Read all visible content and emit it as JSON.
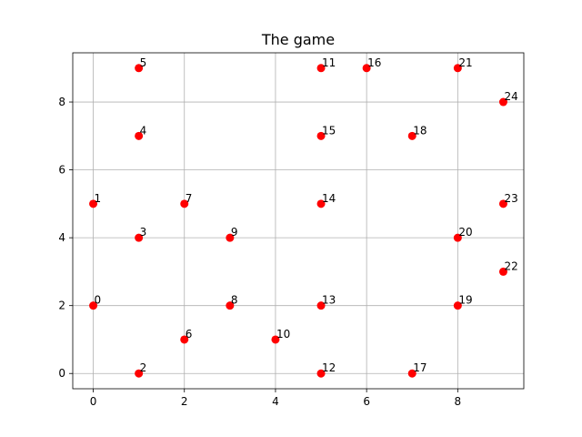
{
  "chart_data": {
    "type": "scatter",
    "title": "The game",
    "xlabel": "",
    "ylabel": "",
    "xlim": [
      -0.45,
      9.45
    ],
    "ylim": [
      -0.45,
      9.45
    ],
    "xticks": [
      0,
      2,
      4,
      6,
      8
    ],
    "yticks": [
      0,
      2,
      4,
      6,
      8
    ],
    "grid": true,
    "marker_color": "#ff0000",
    "points": [
      {
        "label": "0",
        "x": 0,
        "y": 2
      },
      {
        "label": "1",
        "x": 0,
        "y": 5
      },
      {
        "label": "2",
        "x": 1,
        "y": 0
      },
      {
        "label": "3",
        "x": 1,
        "y": 4
      },
      {
        "label": "4",
        "x": 1,
        "y": 7
      },
      {
        "label": "5",
        "x": 1,
        "y": 9
      },
      {
        "label": "6",
        "x": 2,
        "y": 1
      },
      {
        "label": "7",
        "x": 2,
        "y": 5
      },
      {
        "label": "8",
        "x": 3,
        "y": 2
      },
      {
        "label": "9",
        "x": 3,
        "y": 4
      },
      {
        "label": "10",
        "x": 4,
        "y": 1
      },
      {
        "label": "11",
        "x": 5,
        "y": 9
      },
      {
        "label": "12",
        "x": 5,
        "y": 0
      },
      {
        "label": "13",
        "x": 5,
        "y": 2
      },
      {
        "label": "14",
        "x": 5,
        "y": 5
      },
      {
        "label": "15",
        "x": 5,
        "y": 7
      },
      {
        "label": "16",
        "x": 6,
        "y": 9
      },
      {
        "label": "17",
        "x": 7,
        "y": 0
      },
      {
        "label": "18",
        "x": 7,
        "y": 7
      },
      {
        "label": "19",
        "x": 8,
        "y": 2
      },
      {
        "label": "20",
        "x": 8,
        "y": 4
      },
      {
        "label": "21",
        "x": 8,
        "y": 9
      },
      {
        "label": "22",
        "x": 9,
        "y": 3
      },
      {
        "label": "23",
        "x": 9,
        "y": 5
      },
      {
        "label": "24",
        "x": 9,
        "y": 8
      }
    ]
  }
}
